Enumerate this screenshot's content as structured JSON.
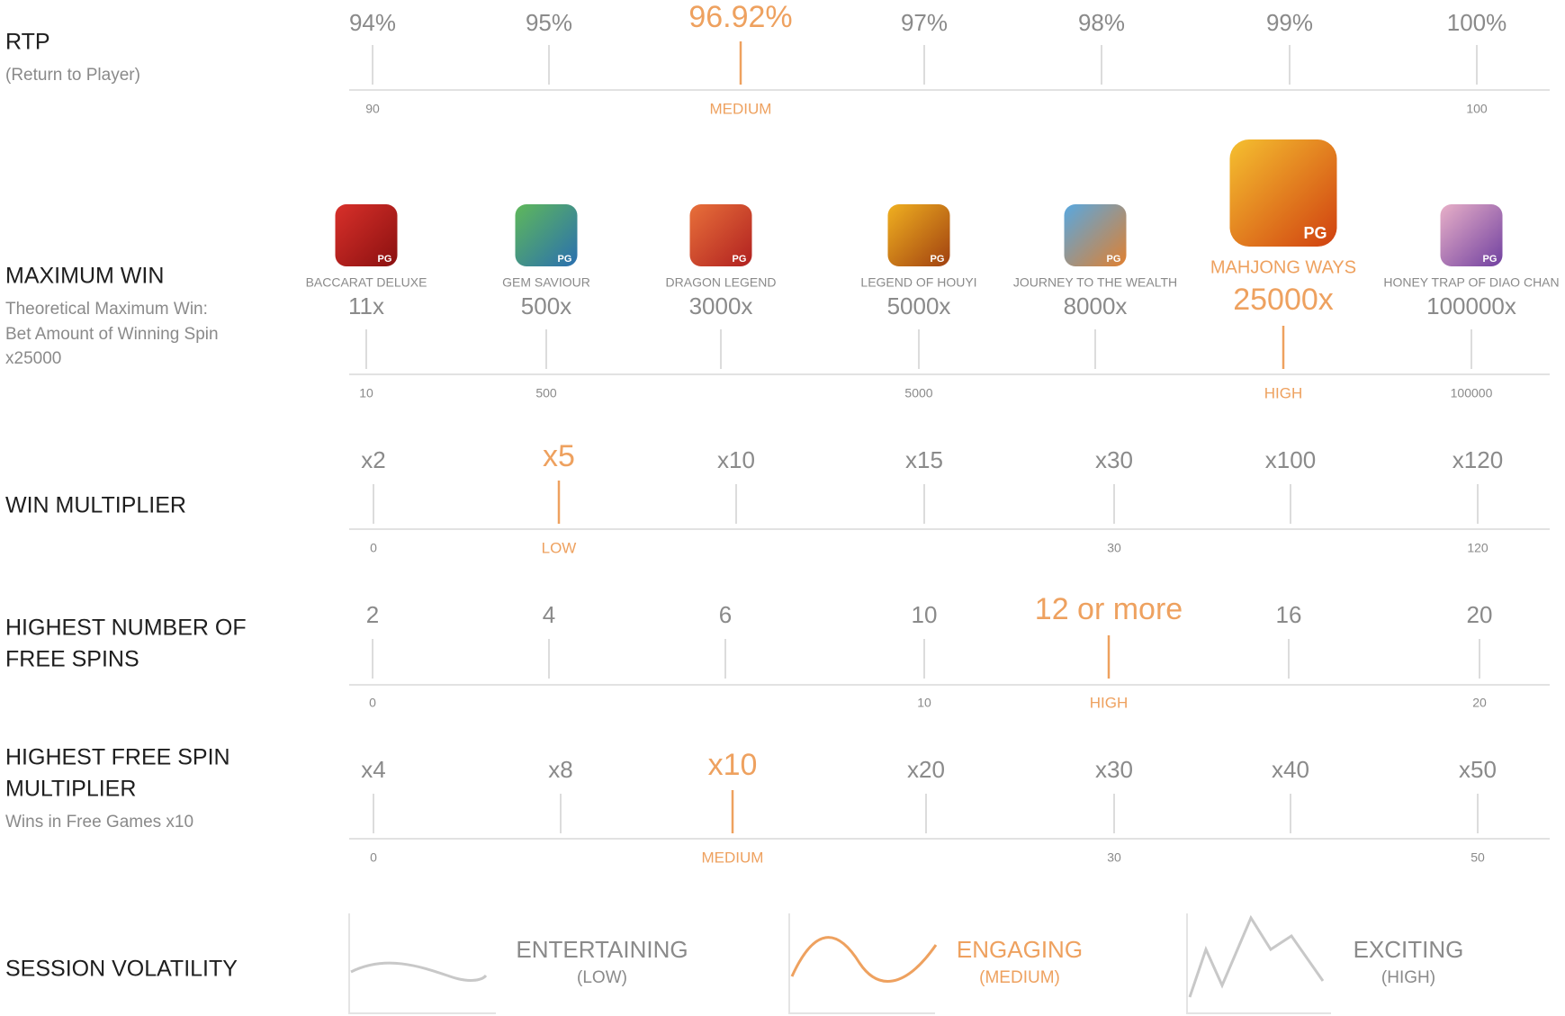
{
  "rows": [
    {
      "label": [
        "RTP"
      ],
      "sublabel": [
        "(Return to Player)"
      ],
      "items": [
        {
          "value": "94%",
          "scale": "90"
        },
        {
          "value": "95%"
        },
        {
          "value": "96.92%",
          "scale": "MEDIUM",
          "highlight": true
        },
        {
          "value": "97%"
        },
        {
          "value": "98%"
        },
        {
          "value": "99%"
        },
        {
          "value": "100%",
          "scale": "100"
        }
      ]
    },
    {
      "label": [
        "MAXIMUM WIN"
      ],
      "sublabel": [
        "Theoretical Maximum Win:",
        "Bet Amount of Winning Spin",
        "x25000"
      ],
      "badge": "PG",
      "items": [
        {
          "name": "BACCARAT DELUXE",
          "value": "11x",
          "scale": "10"
        },
        {
          "name": "GEM SAVIOUR",
          "value": "500x",
          "scale": "500"
        },
        {
          "name": "DRAGON LEGEND",
          "value": "3000x"
        },
        {
          "name": "LEGEND OF HOUYI",
          "value": "5000x",
          "scale": "5000"
        },
        {
          "name": "JOURNEY TO THE WEALTH",
          "value": "8000x"
        },
        {
          "name": "MAHJONG WAYS",
          "value": "25000x",
          "scale": "HIGH",
          "highlight": true
        },
        {
          "name": "HONEY TRAP OF DIAO CHAN",
          "value": "100000x",
          "scale": "100000"
        }
      ]
    },
    {
      "label": [
        "WIN MULTIPLIER"
      ],
      "sublabel": [],
      "items": [
        {
          "value": "x2",
          "scale": "0"
        },
        {
          "value": "x5",
          "scale": "LOW",
          "highlight": true
        },
        {
          "value": "x10"
        },
        {
          "value": "x15"
        },
        {
          "value": "x30",
          "scale": "30"
        },
        {
          "value": "x100"
        },
        {
          "value": "x120",
          "scale": "120"
        }
      ]
    },
    {
      "label": [
        "HIGHEST NUMBER OF",
        "FREE SPINS"
      ],
      "sublabel": [],
      "items": [
        {
          "value": "2",
          "scale": "0"
        },
        {
          "value": "4"
        },
        {
          "value": "6"
        },
        {
          "value": "10",
          "scale": "10"
        },
        {
          "value": "12 or more",
          "scale": "HIGH",
          "highlight": true
        },
        {
          "value": "16"
        },
        {
          "value": "20",
          "scale": "20"
        }
      ]
    },
    {
      "label": [
        "HIGHEST FREE SPIN",
        "MULTIPLIER"
      ],
      "sublabel": [
        "Wins in Free Games x10"
      ],
      "items": [
        {
          "value": "x4",
          "scale": "0"
        },
        {
          "value": "x8"
        },
        {
          "value": "x10",
          "scale": "MEDIUM",
          "highlight": true
        },
        {
          "value": "x20"
        },
        {
          "value": "x30",
          "scale": "30"
        },
        {
          "value": "x40"
        },
        {
          "value": "x50",
          "scale": "50"
        }
      ]
    }
  ],
  "volatility": {
    "label": "SESSION VOLATILITY",
    "items": [
      {
        "title": "ENTERTAINING",
        "level": "(LOW)"
      },
      {
        "title": "ENGAGING",
        "level": "(MEDIUM)",
        "highlight": true
      },
      {
        "title": "EXCITING",
        "level": "(HIGH)"
      }
    ]
  }
}
